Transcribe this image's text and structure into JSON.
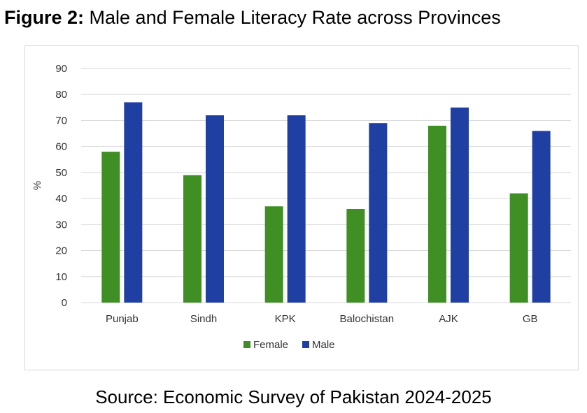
{
  "figure": {
    "number": "Figure 2:",
    "title": "Male and Female Literacy Rate across Provinces",
    "source": "Source: Economic Survey of Pakistan 2024-2025"
  },
  "colors": {
    "female": "#3f8f24",
    "male": "#1f3fa3",
    "grid": "#d9d9d9"
  },
  "chart_data": {
    "type": "bar",
    "categories": [
      "Punjab",
      "Sindh",
      "KPK",
      "Balochistan",
      "AJK",
      "GB"
    ],
    "series": [
      {
        "name": "Female",
        "values": [
          58,
          49,
          37,
          36,
          68,
          42
        ]
      },
      {
        "name": "Male",
        "values": [
          77,
          72,
          72,
          69,
          75,
          66
        ]
      }
    ],
    "ylabel": "%",
    "xlabel": "",
    "ylim": [
      0,
      90
    ],
    "yticks": [
      0,
      10,
      20,
      30,
      40,
      50,
      60,
      70,
      80,
      90
    ],
    "grid": true,
    "legend": "bottom-center"
  }
}
